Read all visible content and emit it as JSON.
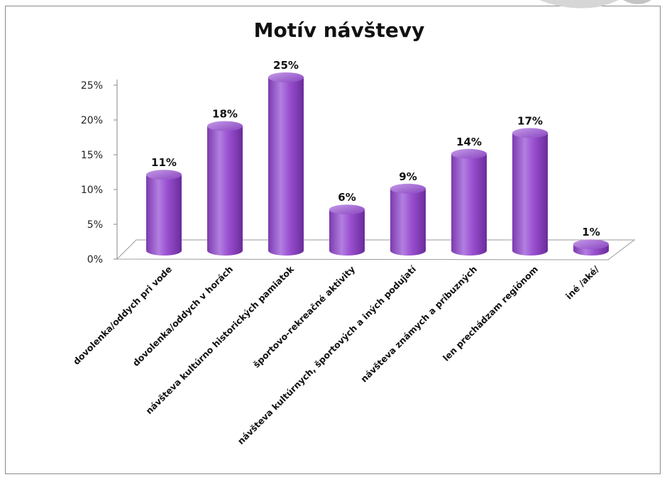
{
  "chart_data": {
    "type": "bar",
    "title": "Motív návštevy",
    "categories": [
      "dovolenka/oddych pri vode",
      "dovolenka/oddych v horách",
      "návšteva kultúrno historických pamiatok",
      "športovo-rekreačné aktivity",
      "návšteva kultúrnych, športových a iných podujatí",
      "návšteva známych a príbuzných",
      "len prechádzam regiónom",
      "iné /aké/"
    ],
    "values": [
      11,
      18,
      25,
      6,
      9,
      14,
      17,
      1
    ],
    "data_labels": [
      "11%",
      "18%",
      "25%",
      "6%",
      "9%",
      "14%",
      "17%",
      "1%"
    ],
    "y_ticks": [
      "0%",
      "5%",
      "10%",
      "15%",
      "20%",
      "25%"
    ],
    "ylim": [
      0,
      25
    ],
    "xlabel": "",
    "ylabel": "",
    "bar_color": "#9a4fd0",
    "legend": "none",
    "grid": false
  }
}
